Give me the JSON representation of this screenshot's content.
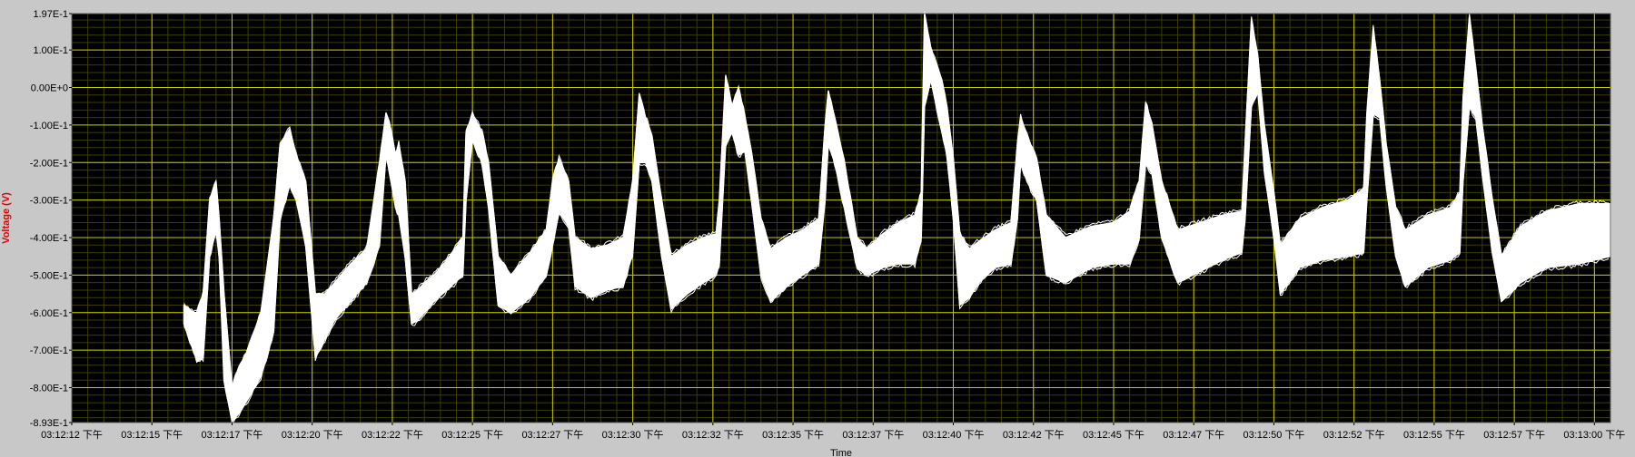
{
  "chart_data": {
    "type": "line",
    "title": "",
    "xlabel": "Time",
    "ylabel": "Voltage (V)",
    "ylim": [
      -0.893,
      0.197
    ],
    "xlim_seconds": [
      0,
      48
    ],
    "grid": true,
    "colors": {
      "plot_background": "#000000",
      "grid_major": "#c8c800",
      "grid_minor": "#3c3c00",
      "trace": "#ffffff",
      "ylabel": "#e00000",
      "frame": "#c8c8c8"
    },
    "y_ticks": [
      {
        "value": 0.197,
        "label": "1.97E-1"
      },
      {
        "value": 0.1,
        "label": "1.00E-1"
      },
      {
        "value": 0.0,
        "label": "0.00E+0"
      },
      {
        "value": -0.1,
        "label": "-1.00E-1"
      },
      {
        "value": -0.2,
        "label": "-2.00E-1"
      },
      {
        "value": -0.3,
        "label": "-3.00E-1"
      },
      {
        "value": -0.4,
        "label": "-4.00E-1"
      },
      {
        "value": -0.5,
        "label": "-5.00E-1"
      },
      {
        "value": -0.6,
        "label": "-6.00E-1"
      },
      {
        "value": -0.7,
        "label": "-7.00E-1"
      },
      {
        "value": -0.8,
        "label": "-8.00E-1"
      },
      {
        "value": -0.893,
        "label": "-8.93E-1"
      }
    ],
    "x_ticks": [
      {
        "t": 0.0,
        "label": "03:12:12 下午"
      },
      {
        "t": 2.5,
        "label": "03:12:15 下午"
      },
      {
        "t": 5.0,
        "label": "03:12:17 下午"
      },
      {
        "t": 7.5,
        "label": "03:12:20 下午"
      },
      {
        "t": 10.0,
        "label": "03:12:22 下午"
      },
      {
        "t": 12.5,
        "label": "03:12:25 下午"
      },
      {
        "t": 15.0,
        "label": "03:12:27 下午"
      },
      {
        "t": 17.5,
        "label": "03:12:30 下午"
      },
      {
        "t": 20.0,
        "label": "03:12:32 下午"
      },
      {
        "t": 22.5,
        "label": "03:12:35 下午"
      },
      {
        "t": 25.0,
        "label": "03:12:37 下午"
      },
      {
        "t": 27.5,
        "label": "03:12:40 下午"
      },
      {
        "t": 30.0,
        "label": "03:12:42 下午"
      },
      {
        "t": 32.5,
        "label": "03:12:45 下午"
      },
      {
        "t": 35.0,
        "label": "03:12:47 下午"
      },
      {
        "t": 37.5,
        "label": "03:12:50 下午"
      },
      {
        "t": 40.0,
        "label": "03:12:52 下午"
      },
      {
        "t": 42.5,
        "label": "03:12:55 下午"
      },
      {
        "t": 45.0,
        "label": "03:12:57 下午"
      },
      {
        "t": 47.5,
        "label": "03:13:00 下午"
      }
    ],
    "series": [
      {
        "t": [
          3.5,
          3.8,
          3.9,
          4.1,
          4.3,
          4.5,
          4.6,
          4.75,
          5.0,
          5.2,
          5.5,
          5.9,
          6.3,
          6.5,
          6.8,
          7.0,
          7.3,
          7.6,
          7.9,
          8.2,
          8.7,
          9.2,
          9.6,
          9.8,
          9.9,
          10.1,
          10.2,
          10.4,
          10.6,
          10.8,
          11.0,
          11.3,
          11.7,
          12.2,
          12.3,
          12.5,
          12.8,
          13.0,
          13.3,
          13.7,
          14.3,
          14.8,
          15.0,
          15.2,
          15.5,
          15.7,
          16.2,
          16.7,
          17.2,
          17.5,
          17.7,
          17.9,
          18.1,
          18.4,
          18.7,
          19.2,
          19.7,
          20.1,
          20.2,
          20.4,
          20.6,
          20.8,
          21.0,
          21.2,
          21.5,
          21.8,
          22.3,
          22.8,
          23.3,
          23.5,
          23.6,
          23.8,
          24.1,
          24.5,
          24.8,
          25.3,
          25.8,
          26.3,
          26.5,
          26.6,
          26.8,
          27.1,
          27.3,
          27.5,
          27.7,
          28.0,
          28.3,
          28.8,
          29.3,
          29.5,
          29.6,
          29.8,
          30.1,
          30.4,
          31.0,
          31.8,
          32.5,
          33.0,
          33.3,
          33.5,
          33.7,
          34.0,
          34.5,
          35.2,
          35.9,
          36.5,
          36.6,
          36.8,
          37.0,
          37.2,
          37.5,
          37.7,
          38.3,
          39.0,
          39.8,
          40.3,
          40.4,
          40.6,
          40.8,
          41.0,
          41.3,
          41.6,
          42.3,
          43.0,
          43.3,
          43.4,
          43.6,
          43.8,
          44.0,
          44.3,
          44.6,
          45.2,
          46.0,
          47.0,
          48.0
        ],
        "upper": [
          -0.58,
          -0.6,
          -0.6,
          -0.55,
          -0.3,
          -0.25,
          -0.35,
          -0.55,
          -0.8,
          -0.75,
          -0.7,
          -0.6,
          -0.35,
          -0.15,
          -0.11,
          -0.18,
          -0.25,
          -0.55,
          -0.55,
          -0.52,
          -0.47,
          -0.43,
          -0.2,
          -0.07,
          -0.09,
          -0.18,
          -0.15,
          -0.25,
          -0.55,
          -0.54,
          -0.52,
          -0.5,
          -0.46,
          -0.4,
          -0.12,
          -0.07,
          -0.12,
          -0.2,
          -0.45,
          -0.5,
          -0.44,
          -0.38,
          -0.25,
          -0.19,
          -0.25,
          -0.4,
          -0.43,
          -0.42,
          -0.4,
          -0.25,
          -0.02,
          -0.08,
          -0.13,
          -0.3,
          -0.45,
          -0.42,
          -0.4,
          -0.39,
          -0.3,
          0.03,
          -0.05,
          -0.0,
          -0.08,
          -0.17,
          -0.35,
          -0.43,
          -0.4,
          -0.38,
          -0.35,
          -0.1,
          -0.01,
          -0.08,
          -0.2,
          -0.4,
          -0.43,
          -0.39,
          -0.36,
          -0.34,
          -0.28,
          0.2,
          0.1,
          0.03,
          -0.05,
          -0.19,
          -0.39,
          -0.43,
          -0.41,
          -0.38,
          -0.36,
          -0.15,
          -0.08,
          -0.13,
          -0.19,
          -0.34,
          -0.4,
          -0.37,
          -0.36,
          -0.33,
          -0.25,
          -0.04,
          -0.1,
          -0.25,
          -0.38,
          -0.36,
          -0.34,
          -0.33,
          -0.15,
          0.18,
          0.08,
          -0.1,
          -0.28,
          -0.42,
          -0.35,
          -0.32,
          -0.3,
          -0.27,
          -0.07,
          0.16,
          0.02,
          -0.15,
          -0.32,
          -0.38,
          -0.34,
          -0.32,
          -0.28,
          -0.03,
          0.19,
          0.05,
          -0.1,
          -0.29,
          -0.45,
          -0.37,
          -0.33,
          -0.31,
          -0.31
        ],
        "lower": [
          -0.63,
          -0.7,
          -0.73,
          -0.72,
          -0.45,
          -0.38,
          -0.45,
          -0.78,
          -0.89,
          -0.87,
          -0.83,
          -0.77,
          -0.65,
          -0.35,
          -0.26,
          -0.3,
          -0.42,
          -0.72,
          -0.67,
          -0.62,
          -0.57,
          -0.52,
          -0.42,
          -0.18,
          -0.22,
          -0.32,
          -0.34,
          -0.45,
          -0.63,
          -0.62,
          -0.6,
          -0.57,
          -0.54,
          -0.5,
          -0.3,
          -0.14,
          -0.2,
          -0.32,
          -0.58,
          -0.6,
          -0.56,
          -0.5,
          -0.42,
          -0.33,
          -0.37,
          -0.53,
          -0.56,
          -0.54,
          -0.53,
          -0.44,
          -0.2,
          -0.2,
          -0.25,
          -0.45,
          -0.59,
          -0.55,
          -0.52,
          -0.5,
          -0.47,
          -0.15,
          -0.12,
          -0.18,
          -0.17,
          -0.3,
          -0.5,
          -0.57,
          -0.53,
          -0.5,
          -0.47,
          -0.3,
          -0.15,
          -0.2,
          -0.32,
          -0.48,
          -0.5,
          -0.48,
          -0.47,
          -0.47,
          -0.4,
          -0.05,
          0.02,
          -0.1,
          -0.18,
          -0.35,
          -0.58,
          -0.56,
          -0.52,
          -0.48,
          -0.47,
          -0.35,
          -0.2,
          -0.25,
          -0.3,
          -0.5,
          -0.52,
          -0.48,
          -0.47,
          -0.47,
          -0.4,
          -0.2,
          -0.23,
          -0.4,
          -0.52,
          -0.49,
          -0.46,
          -0.44,
          -0.35,
          -0.05,
          -0.01,
          -0.22,
          -0.4,
          -0.55,
          -0.48,
          -0.46,
          -0.45,
          -0.44,
          -0.3,
          -0.07,
          -0.08,
          -0.26,
          -0.45,
          -0.53,
          -0.48,
          -0.46,
          -0.44,
          -0.25,
          -0.05,
          -0.08,
          -0.23,
          -0.43,
          -0.57,
          -0.52,
          -0.48,
          -0.47,
          -0.45
        ]
      }
    ]
  }
}
